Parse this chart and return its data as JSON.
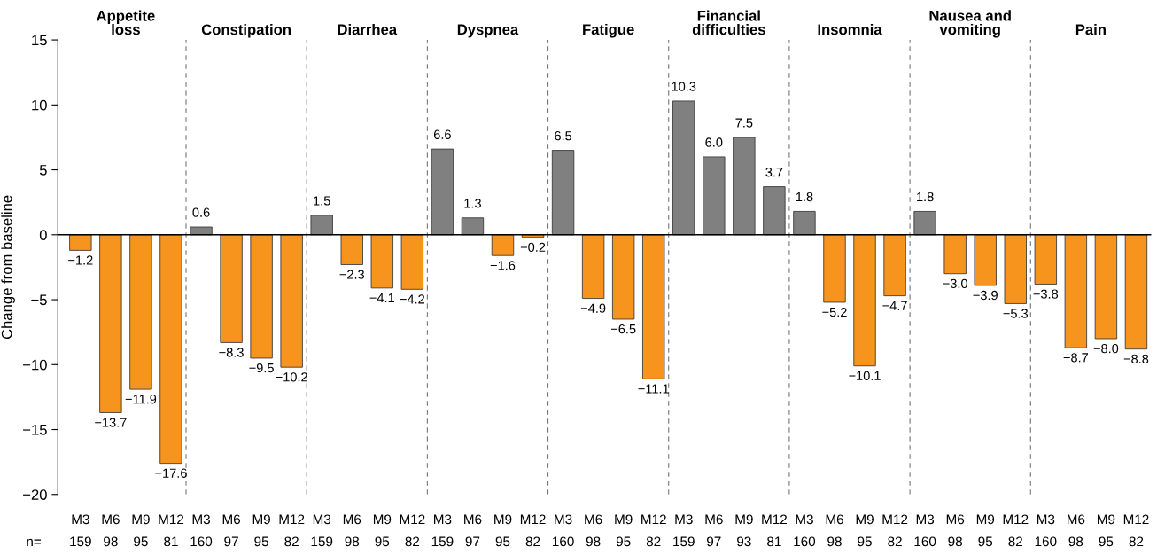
{
  "chart_data": {
    "type": "bar",
    "ylabel": "Change from baseline",
    "categories": [
      "M3",
      "M6",
      "M9",
      "M12",
      "M3",
      "M6",
      "M9",
      "M12",
      "M3",
      "M6",
      "M9",
      "M12",
      "M3",
      "M6",
      "M9",
      "M12",
      "M3",
      "M6",
      "M9",
      "M12",
      "M3",
      "M6",
      "M9",
      "M12",
      "M3",
      "M6",
      "M9",
      "M12",
      "M3",
      "M6",
      "M9",
      "M12",
      "M3",
      "M6",
      "M9",
      "M12"
    ],
    "values": [
      -1.2,
      -13.7,
      -11.9,
      -17.6,
      0.6,
      -8.3,
      -9.5,
      -10.2,
      1.5,
      -2.3,
      -4.1,
      -4.2,
      6.6,
      1.3,
      -1.6,
      -0.2,
      6.5,
      -4.9,
      -6.5,
      -11.1,
      10.3,
      6.0,
      7.5,
      3.7,
      1.8,
      -5.2,
      -10.1,
      -4.7,
      1.8,
      -3.0,
      -3.9,
      -5.3,
      -3.8,
      -8.7,
      -8.0,
      -8.8
    ],
    "value_labels": [
      "−1.2",
      "−13.7",
      "−11.9",
      "−17.6",
      "0.6",
      "−8.3",
      "−9.5",
      "−10.2",
      "1.5",
      "−2.3",
      "−4.1",
      "−4.2",
      "6.6",
      "1.3",
      "−1.6",
      "−0.2",
      "6.5",
      "−4.9",
      "−6.5",
      "−11.1",
      "10.3",
      "6.0",
      "7.5",
      "3.7",
      "1.8",
      "−5.2",
      "−10.1",
      "−4.7",
      "1.8",
      "−3.0",
      "−3.9",
      "−5.3",
      "−3.8",
      "−8.7",
      "−8.0",
      "−8.8"
    ],
    "colors": [
      "#f7941d",
      "#f7941d",
      "#f7941d",
      "#f7941d",
      "#808080",
      "#f7941d",
      "#f7941d",
      "#f7941d",
      "#808080",
      "#f7941d",
      "#f7941d",
      "#f7941d",
      "#808080",
      "#808080",
      "#f7941d",
      "#f7941d",
      "#808080",
      "#f7941d",
      "#f7941d",
      "#f7941d",
      "#808080",
      "#808080",
      "#808080",
      "#808080",
      "#808080",
      "#f7941d",
      "#f7941d",
      "#f7941d",
      "#808080",
      "#f7941d",
      "#f7941d",
      "#f7941d",
      "#f7941d",
      "#f7941d",
      "#f7941d",
      "#f7941d"
    ],
    "ylim": [
      -20,
      15
    ],
    "yticks": [
      {
        "value": -20,
        "label": "−20"
      },
      {
        "value": -15,
        "label": "−15"
      },
      {
        "value": -10,
        "label": "−10"
      },
      {
        "value": -5,
        "label": "−5"
      },
      0,
      5,
      10,
      15
    ],
    "ref_lines": [
      {
        "axis": "y",
        "value": 0,
        "color": "#000000"
      }
    ],
    "annotations": [
      "Appetite loss",
      "Constipation",
      "Diarrhea",
      "Dyspnea",
      "Fatigue",
      "Financial difficulties",
      "Insomnia",
      "Nausea and vomiting",
      "Pain",
      "n=",
      "159",
      "98",
      "95",
      "81",
      "160",
      "97",
      "95",
      "82",
      "159",
      "98",
      "95",
      "82",
      "159",
      "97",
      "95",
      "82",
      "160",
      "98",
      "95",
      "82",
      "159",
      "97",
      "93",
      "81",
      "160",
      "98",
      "95",
      "82",
      "160",
      "98",
      "95",
      "82",
      "160",
      "98",
      "95",
      "82"
    ]
  }
}
